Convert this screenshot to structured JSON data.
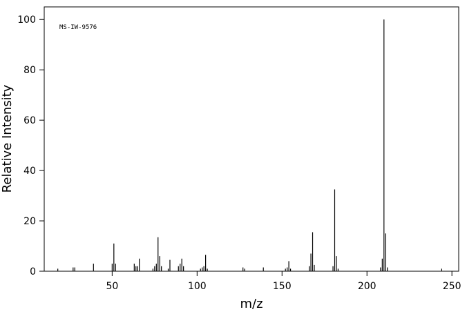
{
  "chart_data": {
    "type": "stem",
    "annotation": "MS-IW-9576",
    "xlabel": "m/z",
    "ylabel": "Relative Intensity",
    "color": "#000000",
    "x": [
      18,
      27,
      28,
      39,
      50,
      51,
      52,
      63,
      64,
      65,
      66,
      74,
      75,
      76,
      77,
      78,
      79,
      83,
      84,
      89,
      90,
      91,
      92,
      102,
      103,
      104,
      105,
      106,
      127,
      128,
      139,
      152,
      153,
      154,
      155,
      166,
      167,
      168,
      169,
      180,
      181,
      182,
      183,
      208,
      209,
      210,
      211,
      212,
      244
    ],
    "values": [
      1,
      1.5,
      1.5,
      3,
      3,
      11,
      3,
      3,
      2,
      2,
      5,
      1,
      2,
      3,
      13.5,
      6,
      2,
      1,
      4.5,
      2,
      3,
      5,
      2,
      1,
      1.5,
      2,
      6.5,
      1,
      1.5,
      1,
      1.5,
      1,
      1.5,
      4,
      1,
      2,
      7,
      15.5,
      2.5,
      2,
      32.5,
      6,
      1,
      1.5,
      5,
      100,
      15,
      1.5,
      1
    ],
    "xlim": [
      10,
      254
    ],
    "ylim": [
      0,
      105
    ],
    "xticks": [
      50,
      100,
      150,
      200,
      250
    ],
    "yticks": [
      0,
      20,
      40,
      60,
      80,
      100
    ]
  }
}
